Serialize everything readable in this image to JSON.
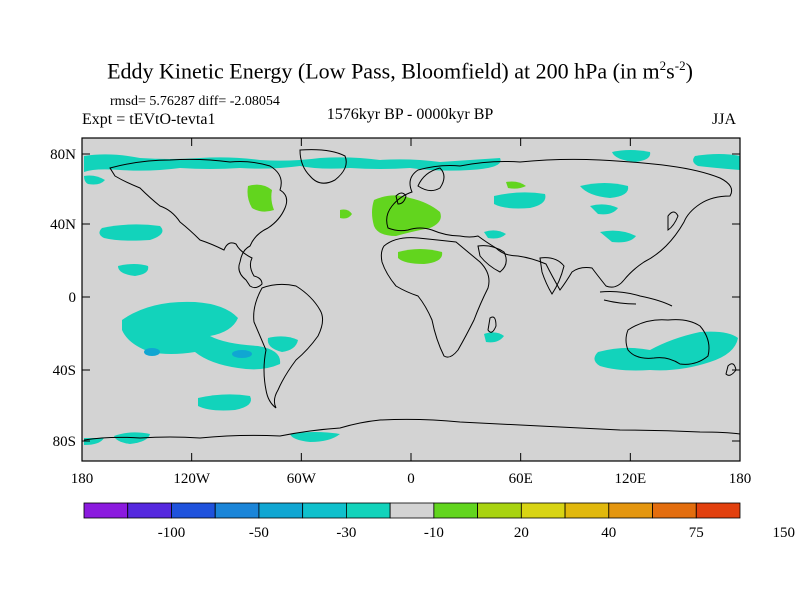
{
  "title": {
    "main": "Eddy Kinetic Energy (Low Pass, Bloomfield) at 200 hPa (in m",
    "sup1": "2",
    "mid": "s",
    "sup2": "-2",
    "close": ")"
  },
  "stats": "rmsd= 5.76287 diff= -2.08054",
  "experiment": "Expt = tEVtO-tevta1",
  "period": "1576kyr BP - 0000kyr BP",
  "season": "JJA",
  "map": {
    "background_color": "#d3d3d3",
    "lat_ticks": [
      "80N",
      "40N",
      "0",
      "40S",
      "80S"
    ],
    "lon_ticks": [
      "180",
      "120W",
      "60W",
      "0",
      "60E",
      "120E",
      "180"
    ]
  },
  "colorbar": {
    "colors": [
      "#8b1ade",
      "#5528de",
      "#1f52dc",
      "#1b85d8",
      "#10a6d2",
      "#0fc0cc",
      "#12d3bb",
      "#d3d3d3",
      "#62d51e",
      "#a8d310",
      "#d8d414",
      "#e1b80d",
      "#e4960f",
      "#e36d0e",
      "#e2400e"
    ],
    "labels": [
      "-100",
      "-50",
      "-30",
      "-10",
      "20",
      "40",
      "75",
      "150"
    ]
  },
  "field_colors": {
    "negative": "#12d3bb",
    "positive": "#62d51e",
    "strong_negative": "#10a6d2"
  }
}
